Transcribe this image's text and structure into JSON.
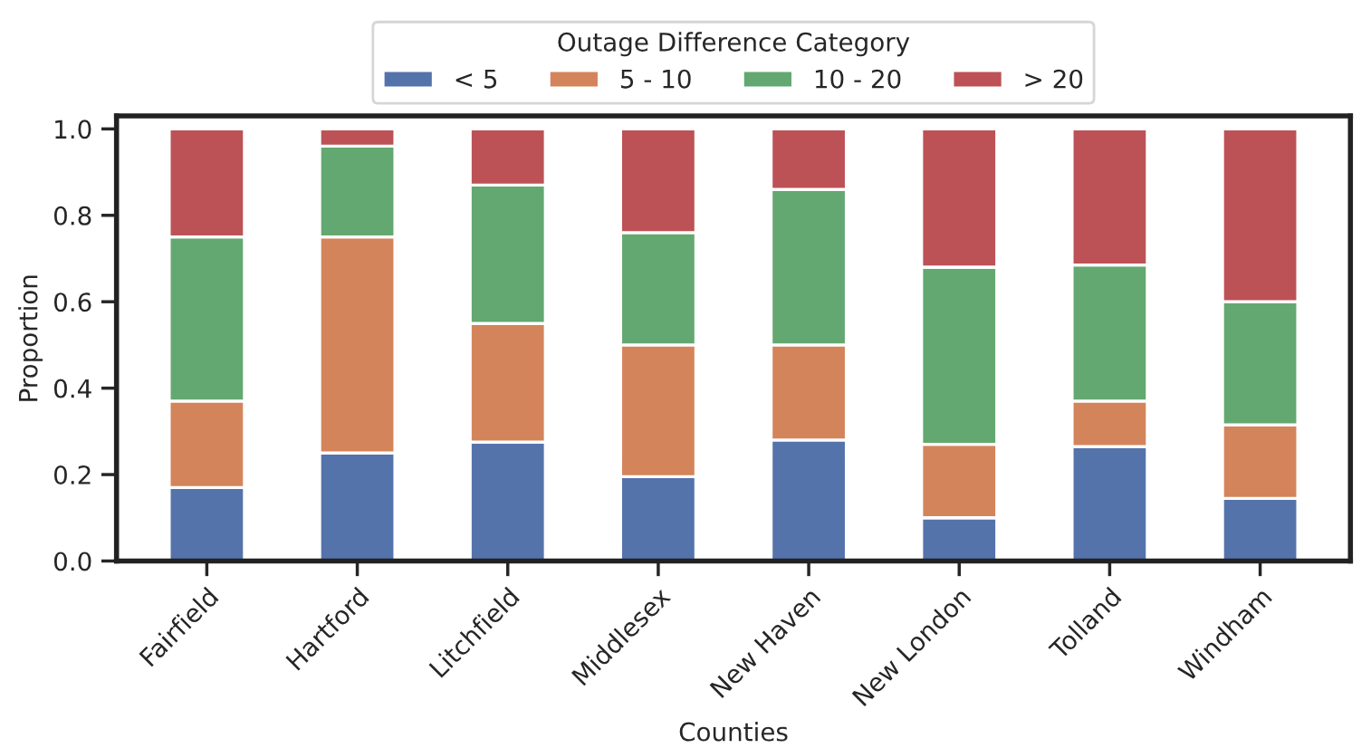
{
  "chart_data": {
    "type": "bar",
    "stacked": true,
    "xlabel": "Counties",
    "ylabel": "Proportion",
    "legend_title": "Outage Difference Category",
    "legend": "top",
    "categories": [
      "Fairfield",
      "Hartford",
      "Litchfield",
      "Middlesex",
      "New Haven",
      "New London",
      "Tolland",
      "Windham"
    ],
    "ylim": [
      0,
      1.03
    ],
    "yticks": [
      {
        "value": 0,
        "label": "0.0"
      },
      {
        "value": 0.2,
        "label": "0.2"
      },
      {
        "value": 0.4,
        "label": "0.4"
      },
      {
        "value": 0.6,
        "label": "0.6"
      },
      {
        "value": 0.8,
        "label": "0.8"
      },
      {
        "value": 1,
        "label": "1.0"
      }
    ],
    "series": [
      {
        "name": "< 5",
        "color": "#5573ab",
        "values": [
          0.17,
          0.25,
          0.275,
          0.195,
          0.28,
          0.1,
          0.265,
          0.145
        ]
      },
      {
        "name": "5 - 10",
        "color": "#d4845a",
        "values": [
          0.2,
          0.5,
          0.275,
          0.305,
          0.22,
          0.17,
          0.105,
          0.17
        ]
      },
      {
        "name": "10 - 20",
        "color": "#63a870",
        "values": [
          0.38,
          0.21,
          0.32,
          0.26,
          0.36,
          0.41,
          0.315,
          0.285
        ]
      },
      {
        "name": "> 20",
        "color": "#bc5256",
        "values": [
          0.25,
          0.04,
          0.13,
          0.24,
          0.14,
          0.32,
          0.315,
          0.4
        ]
      }
    ]
  }
}
